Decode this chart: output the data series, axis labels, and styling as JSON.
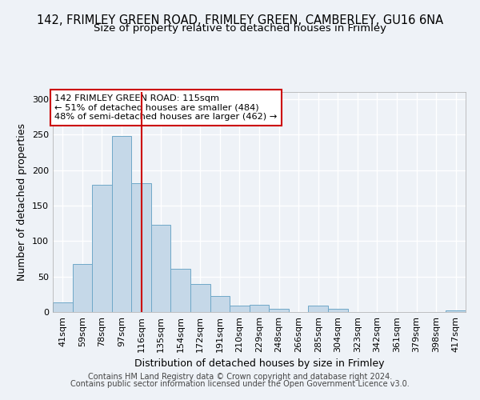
{
  "title": "142, FRIMLEY GREEN ROAD, FRIMLEY GREEN, CAMBERLEY, GU16 6NA",
  "subtitle": "Size of property relative to detached houses in Frimley",
  "xlabel": "Distribution of detached houses by size in Frimley",
  "ylabel": "Number of detached properties",
  "bar_labels": [
    "41sqm",
    "59sqm",
    "78sqm",
    "97sqm",
    "116sqm",
    "135sqm",
    "154sqm",
    "172sqm",
    "191sqm",
    "210sqm",
    "229sqm",
    "248sqm",
    "266sqm",
    "285sqm",
    "304sqm",
    "323sqm",
    "342sqm",
    "361sqm",
    "379sqm",
    "398sqm",
    "417sqm"
  ],
  "bar_values": [
    13,
    68,
    179,
    248,
    181,
    123,
    61,
    40,
    23,
    9,
    10,
    5,
    0,
    9,
    4,
    0,
    0,
    0,
    0,
    0,
    2
  ],
  "bar_color": "#c5d8e8",
  "bar_edge_color": "#6fa8c8",
  "vline_x": 4,
  "vline_color": "#cc0000",
  "annotation_text": "142 FRIMLEY GREEN ROAD: 115sqm\n← 51% of detached houses are smaller (484)\n48% of semi-detached houses are larger (462) →",
  "annotation_box_color": "#ffffff",
  "annotation_box_edge_color": "#cc0000",
  "ylim": [
    0,
    310
  ],
  "yticks": [
    0,
    50,
    100,
    150,
    200,
    250,
    300
  ],
  "footer_line1": "Contains HM Land Registry data © Crown copyright and database right 2024.",
  "footer_line2": "Contains public sector information licensed under the Open Government Licence v3.0.",
  "background_color": "#eef2f7",
  "plot_bg_color": "#eef2f7",
  "grid_color": "#ffffff",
  "title_fontsize": 10.5,
  "subtitle_fontsize": 9.5,
  "axis_label_fontsize": 9,
  "tick_fontsize": 8,
  "footer_fontsize": 7
}
